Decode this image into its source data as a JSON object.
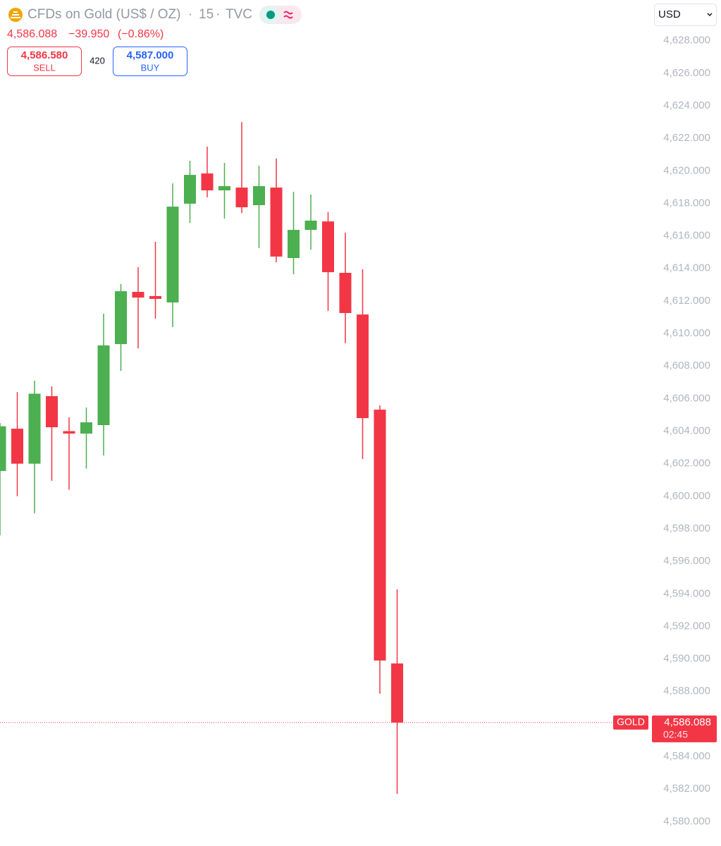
{
  "chart_data": {
    "type": "candlestick",
    "title": "CFDs on Gold (US$ / OZ)",
    "separator": "·",
    "interval": "15",
    "source": "TVC",
    "change": "−39.950",
    "change_percent": "(−0.86%)",
    "sell": {
      "price": "4,586.580",
      "label": "SELL"
    },
    "spread": "420",
    "buy": {
      "price": "4,587.000",
      "label": "BUY"
    },
    "currency": "USD",
    "symbol_tag": "GOLD",
    "countdown": "02:45",
    "last_price": {
      "value": 4586.088,
      "label": "4,586.088"
    },
    "up_color": "#4caf50",
    "down_color": "#f23645",
    "series": {
      "open": [
        4601.55,
        4604.15,
        4602.0,
        4606.15,
        4604.0,
        4603.85,
        4604.37,
        4609.35,
        4612.56,
        4612.3,
        4611.91,
        4617.98,
        4619.84,
        4618.8,
        4618.97,
        4617.89,
        4618.97,
        4614.64,
        4616.37,
        4616.89,
        4613.73,
        4611.17,
        4605.32,
        4589.72
      ],
      "high": [
        4604.5,
        4606.4,
        4607.1,
        4606.75,
        4604.85,
        4605.45,
        4611.22,
        4613.04,
        4614.08,
        4615.64,
        4619.23,
        4620.62,
        4621.49,
        4620.49,
        4623.0,
        4620.32,
        4620.75,
        4618.71,
        4618.54,
        4617.46,
        4616.2,
        4613.95,
        4605.58,
        4594.27
      ],
      "low": [
        4597.6,
        4600.0,
        4598.95,
        4600.95,
        4600.4,
        4601.7,
        4602.5,
        4607.7,
        4609.09,
        4610.91,
        4610.39,
        4616.8,
        4618.37,
        4617.07,
        4617.41,
        4615.25,
        4614.38,
        4613.64,
        4615.16,
        4611.39,
        4609.4,
        4602.29,
        4587.86,
        4581.7
      ],
      "close": [
        4604.3,
        4602.0,
        4606.3,
        4604.24,
        4603.85,
        4604.54,
        4609.27,
        4612.6,
        4612.21,
        4612.13,
        4617.8,
        4619.75,
        4618.8,
        4619.06,
        4617.76,
        4619.06,
        4614.73,
        4616.37,
        4616.94,
        4613.77,
        4611.26,
        4604.8,
        4589.9,
        4586.088
      ]
    },
    "ylim": [
      4578.5,
      4630.5
    ],
    "yticks": [
      {
        "value": 4580,
        "label": "4,580.000"
      },
      {
        "value": 4582,
        "label": "4,582.000"
      },
      {
        "value": 4584,
        "label": "4,584.000"
      },
      {
        "value": 4588,
        "label": "4,588.000"
      },
      {
        "value": 4590,
        "label": "4,590.000"
      },
      {
        "value": 4592,
        "label": "4,592.000"
      },
      {
        "value": 4594,
        "label": "4,594.000"
      },
      {
        "value": 4596,
        "label": "4,596.000"
      },
      {
        "value": 4598,
        "label": "4,598.000"
      },
      {
        "value": 4600,
        "label": "4,600.000"
      },
      {
        "value": 4602,
        "label": "4,602.000"
      },
      {
        "value": 4604,
        "label": "4,604.000"
      },
      {
        "value": 4606,
        "label": "4,606.000"
      },
      {
        "value": 4608,
        "label": "4,608.000"
      },
      {
        "value": 4610,
        "label": "4,610.000"
      },
      {
        "value": 4612,
        "label": "4,612.000"
      },
      {
        "value": 4614,
        "label": "4,614.000"
      },
      {
        "value": 4616,
        "label": "4,616.000"
      },
      {
        "value": 4618,
        "label": "4,618.000"
      },
      {
        "value": 4620,
        "label": "4,620.000"
      },
      {
        "value": 4622,
        "label": "4,622.000"
      },
      {
        "value": 4624,
        "label": "4,624.000"
      },
      {
        "value": 4626,
        "label": "4,626.000"
      },
      {
        "value": 4628,
        "label": "4,628.000"
      }
    ]
  }
}
